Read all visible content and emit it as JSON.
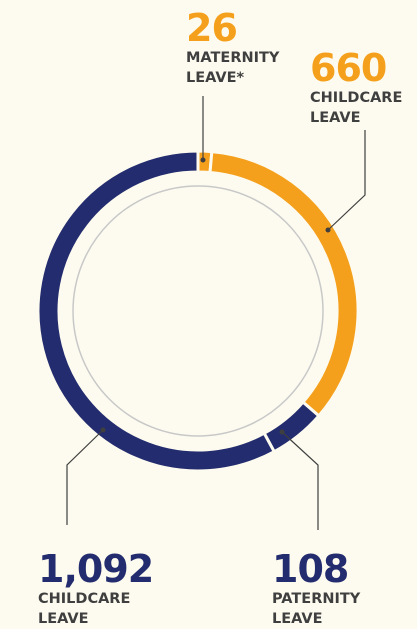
{
  "chart_data": {
    "type": "donut",
    "categories": [
      "MATERNITY LEAVE*",
      "CHILDCARE LEAVE",
      "PATERNITY LEAVE",
      "CHILDCARE LEAVE"
    ],
    "values": [
      26,
      660,
      108,
      1092
    ],
    "value_labels": [
      "26",
      "660",
      "108",
      "1,092"
    ],
    "colors": [
      "#f5a01c",
      "#f5a01c",
      "#232c6e",
      "#232c6e"
    ]
  }
}
